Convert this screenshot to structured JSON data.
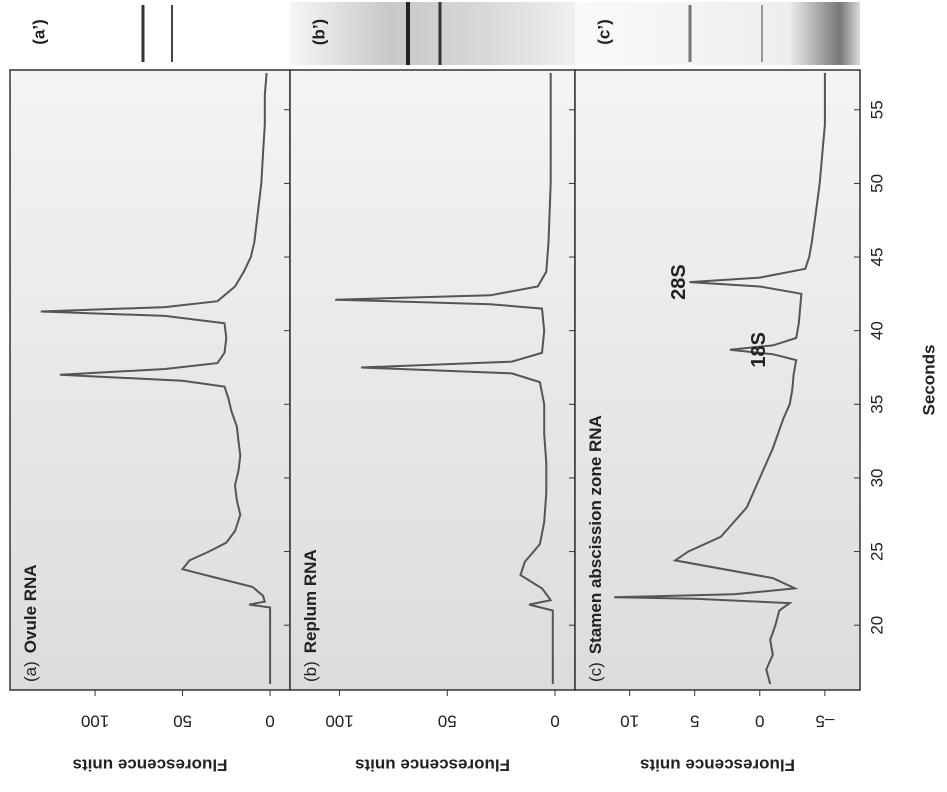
{
  "chart_data": [
    {
      "type": "line",
      "label": "(a)",
      "title": "Ovule RNA",
      "gel_label": "(a’)",
      "ylabel": "Fluorescence units",
      "color": "#555555",
      "x": [
        16,
        20,
        21.2,
        21.4,
        21.6,
        22,
        22.6,
        23.2,
        23.8,
        24.4,
        25,
        25.6,
        26.4,
        27.5,
        28.5,
        29.5,
        30.5,
        31.5,
        32.5,
        33.5,
        34.5,
        35.5,
        36.2,
        36.6,
        37,
        37.4,
        37.8,
        38.5,
        39.5,
        40.5,
        41,
        41.3,
        41.6,
        42,
        43,
        44,
        45,
        46,
        48,
        50,
        52,
        54,
        56,
        57.5
      ],
      "values": [
        0,
        0,
        0,
        12,
        3,
        4,
        10,
        30,
        50,
        46,
        35,
        25,
        20,
        17,
        19,
        20,
        18,
        17,
        18,
        19,
        22,
        24,
        26,
        50,
        120,
        60,
        30,
        26,
        25,
        26,
        60,
        131,
        60,
        30,
        20,
        15,
        11,
        9,
        7,
        5,
        4,
        3,
        3,
        2
      ],
      "xlim": [
        15.6,
        57.7
      ],
      "ylim": [
        -11.4,
        148.6
      ],
      "yticks": [
        0,
        50,
        100
      ],
      "xticks": [
        20,
        25,
        30,
        35,
        40,
        45,
        50,
        55
      ]
    },
    {
      "type": "line",
      "label": "(b)",
      "title": "Replum RNA",
      "gel_label": "(b’)",
      "ylabel": "Fluorescence units",
      "color": "#555555",
      "x": [
        16,
        21,
        21.4,
        21.7,
        22.5,
        23.4,
        24.3,
        25.5,
        27,
        29,
        31,
        33,
        35,
        36.5,
        37.1,
        37.5,
        37.9,
        38.5,
        40,
        41.5,
        41.8,
        42.1,
        42.4,
        43,
        44,
        46,
        50,
        55,
        57.5
      ],
      "values": [
        1,
        1,
        12,
        2,
        6,
        16,
        14,
        7,
        5,
        4,
        4,
        5,
        5,
        7,
        20,
        90,
        20,
        6,
        5,
        6,
        30,
        102,
        30,
        8,
        4,
        3,
        2,
        2,
        2
      ],
      "xlim": [
        15.6,
        57.7
      ],
      "ylim": [
        -9.3,
        123
      ],
      "yticks": [
        0,
        50,
        100
      ],
      "xticks": [
        20,
        25,
        30,
        35,
        40,
        45,
        50,
        55
      ]
    },
    {
      "type": "line",
      "label": "(c)",
      "title": "Stamen abscission zone RNA",
      "gel_label": "(c’)",
      "ylabel": "Fluorescence units",
      "xlabel": "Seconds",
      "color": "#555555",
      "annotations": [
        "18S",
        "28S"
      ],
      "x": [
        16,
        17,
        18,
        19,
        20,
        21,
        21.5,
        21.8,
        21.9,
        22.1,
        22.5,
        23.2,
        24.4,
        25,
        26,
        27,
        28,
        30,
        32,
        34,
        35,
        36,
        37,
        38,
        38.4,
        38.7,
        39,
        39.5,
        40.5,
        41.5,
        42.5,
        43,
        43.3,
        43.6,
        44.2,
        45,
        46,
        48,
        50,
        52,
        54,
        55,
        57.5
      ],
      "values": [
        -0.8,
        -0.5,
        -1,
        -0.8,
        -1.2,
        -1.5,
        -2.3,
        5,
        11.2,
        2,
        -2.7,
        -1,
        6.5,
        5.5,
        3,
        2,
        1,
        0,
        -1,
        -1.8,
        -2.3,
        -2.5,
        -2.6,
        -2.8,
        -1,
        2.3,
        -1,
        -2.8,
        -3,
        -3.1,
        -3.2,
        0,
        5.4,
        0,
        -3.5,
        -3.8,
        -4,
        -4.3,
        -4.6,
        -4.8,
        -5,
        -5,
        -5
      ],
      "xlim": [
        15.6,
        57.7
      ],
      "ylim": [
        -7.7,
        14.2
      ],
      "yticks": [
        {
          "value": -5,
          "label": "–5"
        },
        0,
        5,
        10
      ],
      "xticks": [
        20,
        25,
        30,
        35,
        40,
        45,
        50,
        55
      ]
    }
  ]
}
